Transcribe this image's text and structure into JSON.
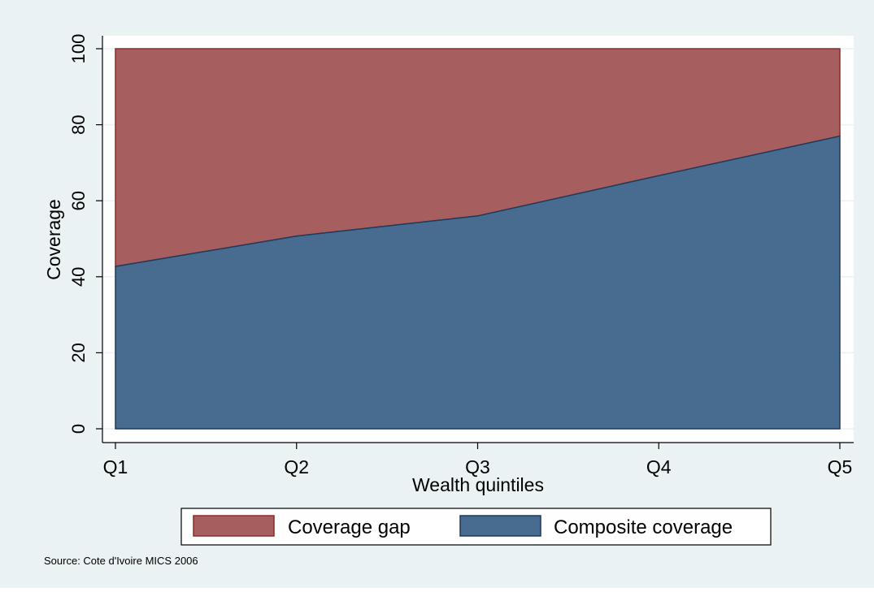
{
  "chart_data": {
    "type": "area",
    "stacked": true,
    "categories": [
      "Q1",
      "Q2",
      "Q3",
      "Q4",
      "Q5"
    ],
    "series": [
      {
        "name": "Composite coverage",
        "values": [
          42.7,
          50.7,
          56,
          66.6,
          77
        ],
        "color": "#486c8f"
      },
      {
        "name": "Coverage gap",
        "values": [
          57.3,
          49.3,
          44,
          33.4,
          23
        ],
        "color": "#a65e5f"
      }
    ],
    "xlabel": "Wealth quintiles",
    "ylabel": "Coverage",
    "ylim": [
      0,
      100
    ],
    "yticks": [
      "0",
      "20",
      "40",
      "60",
      "80",
      "100"
    ],
    "grid": true,
    "legend": {
      "position": "bottom",
      "entries": [
        "Coverage gap",
        "Composite coverage"
      ]
    },
    "note": "Source: Cote d'Ivoire MICS 2006",
    "colors": {
      "background": "#eaf2f3",
      "plot_background": "#ffffff",
      "composite_line": "#1e3a5c",
      "gap_line": "#8b2a2f"
    }
  }
}
